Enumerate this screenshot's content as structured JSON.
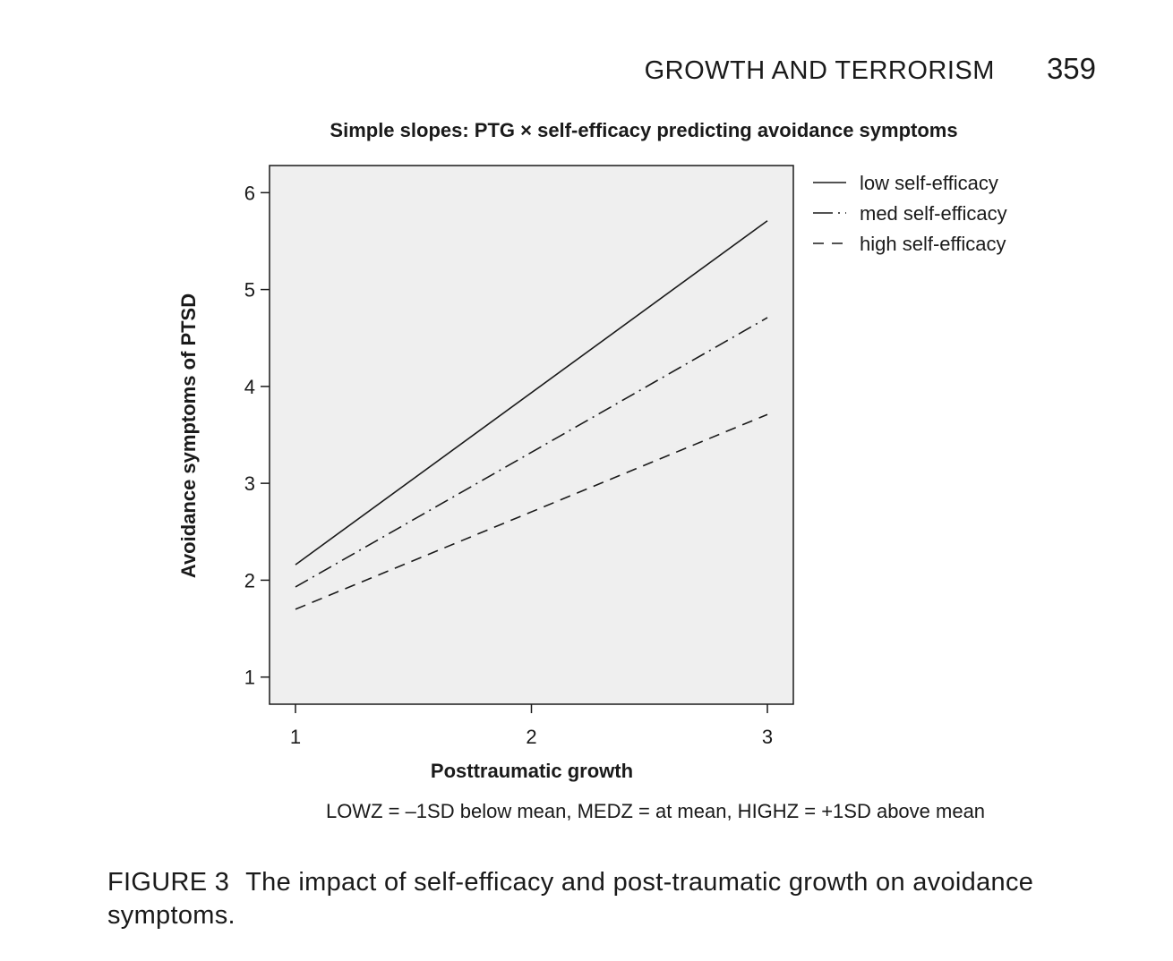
{
  "page": {
    "running_title": "GROWTH AND TERRORISM",
    "page_number": "359"
  },
  "caption": {
    "label": "FIGURE 3",
    "text": "The impact of self-efficacy and post-traumatic growth on avoidance symptoms."
  },
  "chart_data": {
    "type": "line",
    "title": "Simple slopes: PTG × self-efficacy predicting avoidance symptoms",
    "xlabel": "Posttraumatic growth",
    "ylabel": "Avoidance symptoms of PTSD",
    "x": [
      1,
      3
    ],
    "xticks": [
      1,
      2,
      3
    ],
    "yticks": [
      1,
      2,
      3,
      4,
      5,
      6
    ],
    "xlim": [
      0.89,
      3.11
    ],
    "ylim": [
      0.72,
      6.28
    ],
    "grid": false,
    "plot_background": "#efefef",
    "legend_position": "right",
    "note": "LOWZ = –1SD below mean, MEDZ = at mean, HIGHZ = +1SD above mean",
    "series": [
      {
        "name": "low self-efficacy",
        "values": [
          2.16,
          5.71
        ],
        "style": "solid"
      },
      {
        "name": "med self-efficacy",
        "values": [
          1.93,
          4.71
        ],
        "style": "dashdot"
      },
      {
        "name": "high self-efficacy",
        "values": [
          1.7,
          3.71
        ],
        "style": "dashed"
      }
    ]
  }
}
